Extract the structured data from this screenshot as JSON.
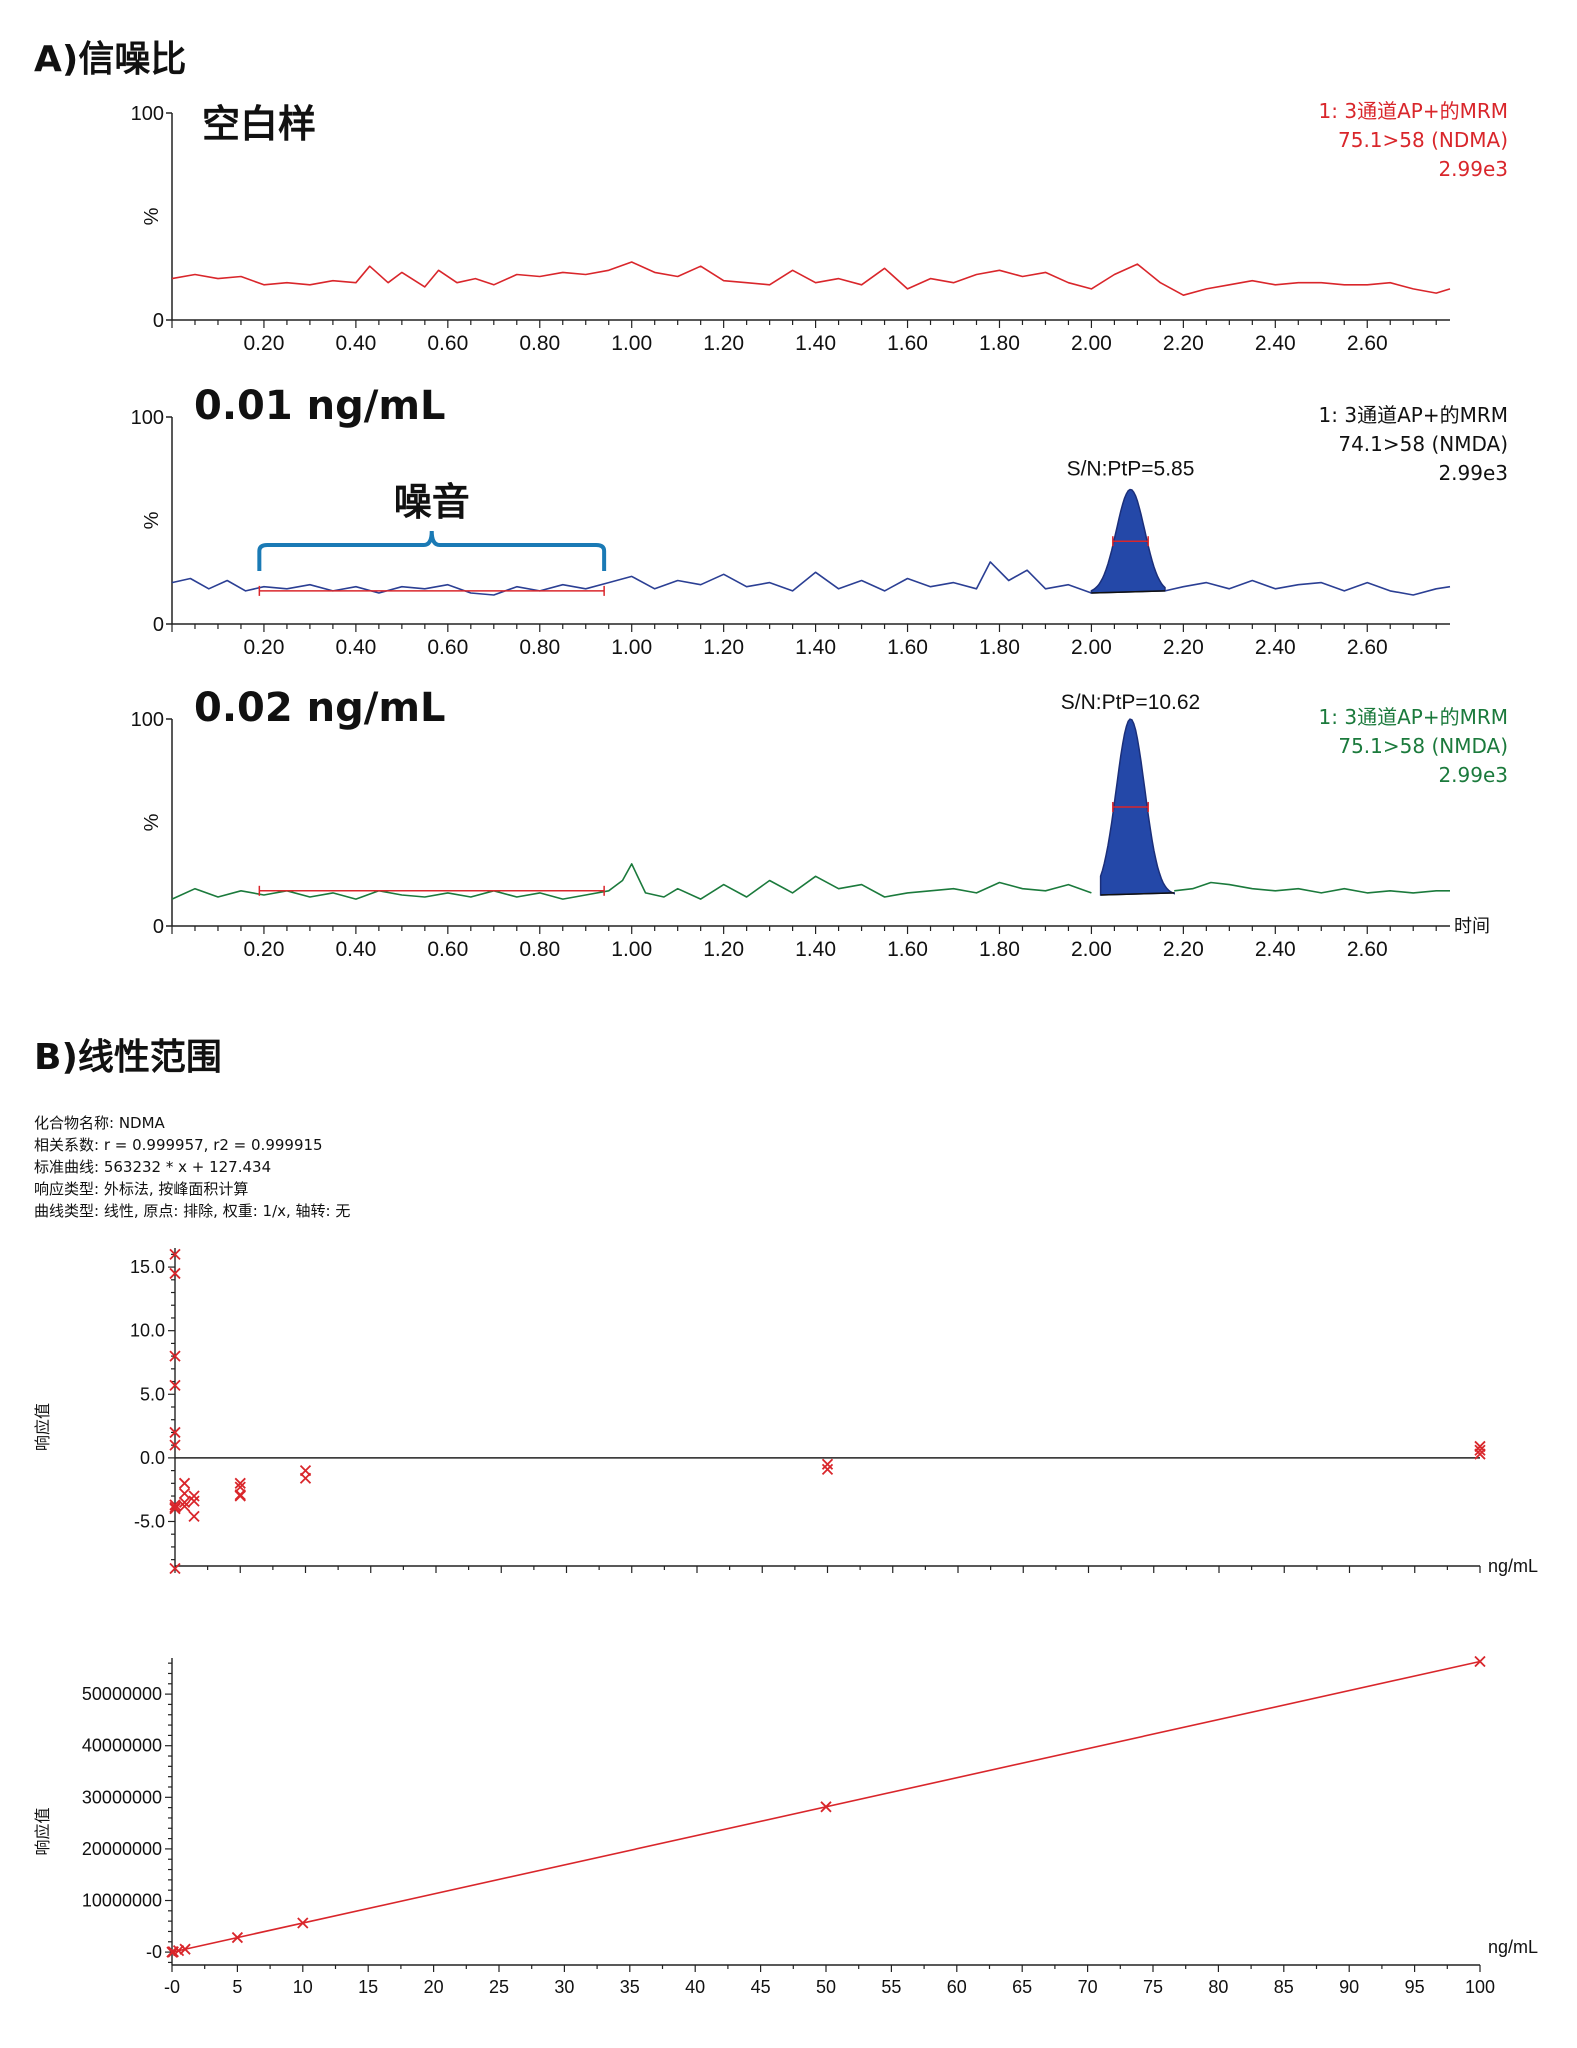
{
  "section_a_title": "A)信噪比",
  "section_b_title": "B)线性范围",
  "calibration_info": [
    "化合物名称: NDMA",
    "相关系数: r = 0.999957, r2 = 0.999915",
    "标准曲线: 563232 * x + 127.434",
    "响应类型: 外标法, 按峰面积计算",
    "曲线类型: 线性, 原点: 排除, 权重: 1/x, 轴转: 无"
  ],
  "colors": {
    "red": "#d9262b",
    "blue": "#2b3f94",
    "green": "#1b7a3c",
    "peak_fill": "#2448a8",
    "bracket": "#1a7ab5"
  },
  "chart_data": [
    {
      "type": "line",
      "title": "空白样",
      "ylabel": "%",
      "ylim": [
        0,
        100
      ],
      "xlim": [
        0,
        2.78
      ],
      "xticks": [
        "0.20",
        "0.40",
        "0.60",
        "0.80",
        "1.00",
        "1.20",
        "1.40",
        "1.60",
        "1.80",
        "2.00",
        "2.20",
        "2.40",
        "2.60"
      ],
      "yticks": [
        "0",
        "100"
      ],
      "legend": [
        "1: 3通道AP+的MRM",
        "75.1>58 (NDMA)",
        "2.99e3"
      ],
      "legend_color": "red",
      "series": [
        {
          "color": "red",
          "x": [
            0,
            0.05,
            0.1,
            0.15,
            0.2,
            0.25,
            0.3,
            0.35,
            0.4,
            0.43,
            0.47,
            0.5,
            0.55,
            0.58,
            0.62,
            0.66,
            0.7,
            0.75,
            0.8,
            0.85,
            0.9,
            0.95,
            1.0,
            1.05,
            1.1,
            1.15,
            1.2,
            1.25,
            1.3,
            1.35,
            1.4,
            1.45,
            1.5,
            1.55,
            1.6,
            1.65,
            1.7,
            1.75,
            1.8,
            1.85,
            1.9,
            1.95,
            2.0,
            2.05,
            2.1,
            2.15,
            2.2,
            2.25,
            2.3,
            2.35,
            2.4,
            2.45,
            2.5,
            2.55,
            2.6,
            2.65,
            2.7,
            2.75,
            2.78
          ],
          "y": [
            20,
            22,
            20,
            21,
            17,
            18,
            17,
            19,
            18,
            26,
            18,
            23,
            16,
            24,
            18,
            20,
            17,
            22,
            21,
            23,
            22,
            24,
            28,
            23,
            21,
            26,
            19,
            18,
            17,
            24,
            18,
            20,
            17,
            25,
            15,
            20,
            18,
            22,
            24,
            21,
            23,
            18,
            15,
            22,
            27,
            18,
            12,
            15,
            17,
            19,
            17,
            18,
            18,
            17,
            17,
            18,
            15,
            13,
            15
          ]
        }
      ]
    },
    {
      "type": "line",
      "title": "0.01 ng/mL",
      "ylabel": "%",
      "ylim": [
        0,
        100
      ],
      "xlim": [
        0,
        2.78
      ],
      "xticks": [
        "0.20",
        "0.40",
        "0.60",
        "0.80",
        "1.00",
        "1.20",
        "1.40",
        "1.60",
        "1.80",
        "2.00",
        "2.20",
        "2.40",
        "2.60"
      ],
      "yticks": [
        "0",
        "100"
      ],
      "legend": [
        "1: 3通道AP+的MRM",
        "74.1>58 (NMDA)",
        "2.99e3"
      ],
      "legend_color": "black",
      "annotation": "S/N:PtP=5.85",
      "noise_label": "噪音",
      "noise_range": [
        0.19,
        0.94
      ],
      "peak": {
        "rt": 2.085,
        "height": 65,
        "start": 2.0,
        "end": 2.16,
        "baseline": 15
      },
      "series": [
        {
          "color": "blue",
          "x": [
            0,
            0.04,
            0.08,
            0.12,
            0.16,
            0.2,
            0.25,
            0.3,
            0.35,
            0.4,
            0.45,
            0.5,
            0.55,
            0.6,
            0.65,
            0.7,
            0.75,
            0.8,
            0.85,
            0.9,
            0.95,
            1.0,
            1.05,
            1.1,
            1.15,
            1.2,
            1.25,
            1.3,
            1.35,
            1.4,
            1.45,
            1.5,
            1.55,
            1.6,
            1.65,
            1.7,
            1.75,
            1.78,
            1.82,
            1.86,
            1.9,
            1.95,
            2.0
          ],
          "y": [
            20,
            22,
            17,
            21,
            16,
            18,
            17,
            19,
            16,
            18,
            15,
            18,
            17,
            19,
            15,
            14,
            18,
            16,
            19,
            17,
            20,
            23,
            17,
            21,
            19,
            24,
            18,
            20,
            16,
            25,
            17,
            21,
            16,
            22,
            18,
            20,
            17,
            30,
            21,
            26,
            17,
            19,
            15
          ]
        },
        {
          "color": "blue",
          "x": [
            2.16,
            2.2,
            2.25,
            2.3,
            2.35,
            2.4,
            2.45,
            2.5,
            2.55,
            2.6,
            2.65,
            2.7,
            2.75,
            2.78
          ],
          "y": [
            16,
            18,
            20,
            17,
            21,
            17,
            19,
            20,
            16,
            20,
            16,
            14,
            17,
            18
          ]
        }
      ]
    },
    {
      "type": "line",
      "title": "0.02 ng/mL",
      "ylabel": "%",
      "xlabel": "时间",
      "ylim": [
        0,
        100
      ],
      "xlim": [
        0,
        2.78
      ],
      "xticks": [
        "0.20",
        "0.40",
        "0.60",
        "0.80",
        "1.00",
        "1.20",
        "1.40",
        "1.60",
        "1.80",
        "2.00",
        "2.20",
        "2.40",
        "2.60"
      ],
      "yticks": [
        "0",
        "100"
      ],
      "legend": [
        "1: 3通道AP+的MRM",
        "75.1>58 (NMDA)",
        "2.99e3"
      ],
      "legend_color": "green",
      "annotation": "S/N:PtP=10.62",
      "noise_range": [
        0.19,
        0.94
      ],
      "peak": {
        "rt": 2.085,
        "height": 100,
        "start": 2.02,
        "end": 2.18,
        "baseline": 15
      },
      "series": [
        {
          "color": "green",
          "x": [
            0,
            0.05,
            0.1,
            0.15,
            0.2,
            0.25,
            0.3,
            0.35,
            0.4,
            0.45,
            0.5,
            0.55,
            0.6,
            0.65,
            0.7,
            0.75,
            0.8,
            0.85,
            0.9,
            0.95,
            0.98,
            1.0,
            1.03,
            1.07,
            1.1,
            1.15,
            1.2,
            1.25,
            1.3,
            1.35,
            1.4,
            1.45,
            1.5,
            1.55,
            1.6,
            1.65,
            1.7,
            1.75,
            1.8,
            1.85,
            1.9,
            1.95,
            2.0
          ],
          "y": [
            13,
            18,
            14,
            17,
            15,
            17,
            14,
            16,
            13,
            17,
            15,
            14,
            16,
            14,
            17,
            14,
            16,
            13,
            15,
            17,
            22,
            30,
            16,
            14,
            18,
            13,
            20,
            14,
            22,
            16,
            24,
            18,
            20,
            14,
            16,
            17,
            18,
            16,
            21,
            18,
            17,
            20,
            16
          ]
        },
        {
          "color": "green",
          "x": [
            2.18,
            2.22,
            2.26,
            2.3,
            2.35,
            2.4,
            2.45,
            2.5,
            2.55,
            2.6,
            2.65,
            2.7,
            2.75,
            2.78
          ],
          "y": [
            17,
            18,
            21,
            20,
            18,
            17,
            18,
            16,
            18,
            16,
            17,
            16,
            17,
            17
          ]
        }
      ]
    },
    {
      "type": "scatter",
      "title": "",
      "ylabel": "响应值",
      "xlabel": "ng/mL",
      "ylim": [
        -8.5,
        16.5
      ],
      "xlim": [
        0,
        100
      ],
      "yticks": [
        "-5.0",
        "0.0",
        "5.0",
        "10.0",
        "15.0"
      ],
      "series": [
        {
          "color": "red",
          "x": [
            0,
            0,
            0,
            0,
            0,
            0,
            0,
            0,
            0,
            0,
            0.5,
            0.5,
            0.5,
            0.5,
            1,
            1,
            1,
            5,
            5,
            5,
            5,
            10,
            10,
            50,
            50,
            100,
            100,
            100
          ],
          "y": [
            16,
            14.5,
            8,
            5.7,
            2,
            1,
            -3.7,
            -3.9,
            -4,
            -8.7,
            -2,
            -2.8,
            -3.5,
            -3.8,
            -3,
            -3.4,
            -4.6,
            -2,
            -2.3,
            -2.9,
            -3,
            -1,
            -1.6,
            -0.5,
            -0.9,
            0.9,
            0.6,
            0.3
          ]
        }
      ]
    },
    {
      "type": "scatter",
      "title": "",
      "ylabel": "响应值",
      "xlabel": "ng/mL",
      "ylim": [
        -2500000,
        57000000
      ],
      "xlim": [
        0,
        100
      ],
      "xticks": [
        "-0",
        "5",
        "10",
        "15",
        "20",
        "25",
        "30",
        "35",
        "40",
        "45",
        "50",
        "55",
        "60",
        "65",
        "70",
        "75",
        "80",
        "85",
        "90",
        "95",
        "100"
      ],
      "yticks": [
        "-0",
        "10000000",
        "20000000",
        "30000000",
        "40000000",
        "50000000"
      ],
      "fit": {
        "slope": 563232,
        "intercept": 127.434
      },
      "series": [
        {
          "color": "red",
          "x": [
            0,
            0.02,
            0.05,
            0.1,
            0.5,
            1,
            5,
            10,
            50,
            100
          ],
          "y": [
            0,
            11000,
            28000,
            56000,
            282000,
            563000,
            2816000,
            5632000,
            28160000,
            56320000
          ]
        }
      ]
    }
  ]
}
